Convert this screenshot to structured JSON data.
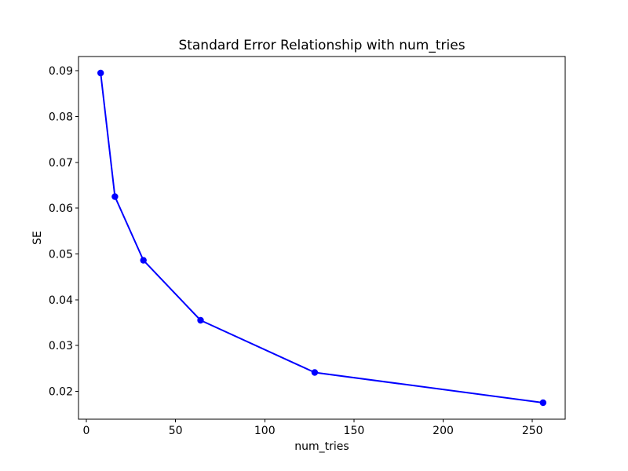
{
  "figure": {
    "background": "#ffffff",
    "text_color": "#000000",
    "spine_color": "#000000"
  },
  "chart_data": {
    "type": "line",
    "title": "Standard Error Relationship with num_tries",
    "xlabel": "num_tries",
    "ylabel": "SE",
    "x": [
      8,
      16,
      32,
      64,
      128,
      256
    ],
    "y": [
      0.0895,
      0.0625,
      0.0486,
      0.0355,
      0.0241,
      0.0175
    ],
    "series_name": "SE",
    "xticks": [
      0,
      50,
      100,
      150,
      200,
      250
    ],
    "xtick_labels": [
      "0",
      "50",
      "100",
      "150",
      "200",
      "250"
    ],
    "yticks": [
      0.02,
      0.03,
      0.04,
      0.05,
      0.06,
      0.07,
      0.08,
      0.09
    ],
    "ytick_labels": [
      "0.02",
      "0.03",
      "0.04",
      "0.05",
      "0.06",
      "0.07",
      "0.08",
      "0.09"
    ],
    "xlim": [
      -4.4,
      268.4
    ],
    "ylim": [
      0.0139,
      0.0931
    ],
    "line_color": "#0000ff",
    "marker": "o",
    "marker_color": "#0000ff",
    "grid": false,
    "legend_position": "none"
  }
}
